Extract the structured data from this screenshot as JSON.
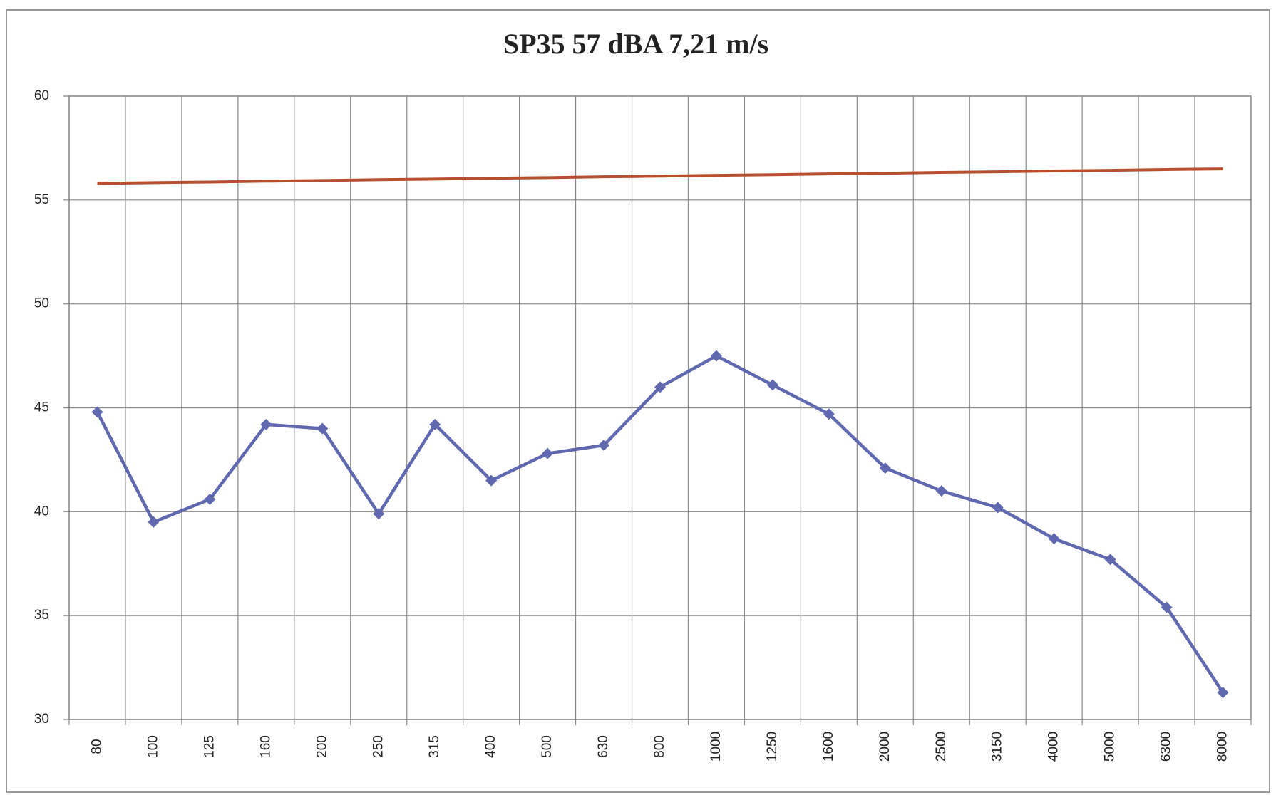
{
  "chart_data": {
    "type": "line",
    "title": "SP35 57 dBA 7,21 m/s",
    "categories": [
      "80",
      "100",
      "125",
      "160",
      "200",
      "250",
      "315",
      "400",
      "500",
      "630",
      "800",
      "1000",
      "1250",
      "1600",
      "2000",
      "2500",
      "3150",
      "4000",
      "5000",
      "6300",
      "8000"
    ],
    "series": [
      {
        "color": "#6068b0",
        "marker": "diamond",
        "values": [
          44.8,
          39.5,
          40.6,
          44.2,
          44.0,
          39.9,
          44.2,
          41.5,
          42.8,
          43.2,
          46.0,
          47.5,
          46.1,
          44.7,
          42.1,
          41.0,
          40.2,
          38.7,
          37.7,
          35.4,
          31.3
        ]
      },
      {
        "color": "#b8502f",
        "values": [
          55.8,
          55.84,
          55.87,
          55.91,
          55.94,
          55.98,
          56.01,
          56.05,
          56.08,
          56.12,
          56.15,
          56.19,
          56.22,
          56.26,
          56.29,
          56.33,
          56.36,
          56.4,
          56.43,
          56.47,
          56.5
        ]
      }
    ],
    "ylim": [
      30,
      60
    ],
    "yticks": [
      30,
      35,
      40,
      45,
      50,
      55,
      60
    ],
    "grid": true
  }
}
